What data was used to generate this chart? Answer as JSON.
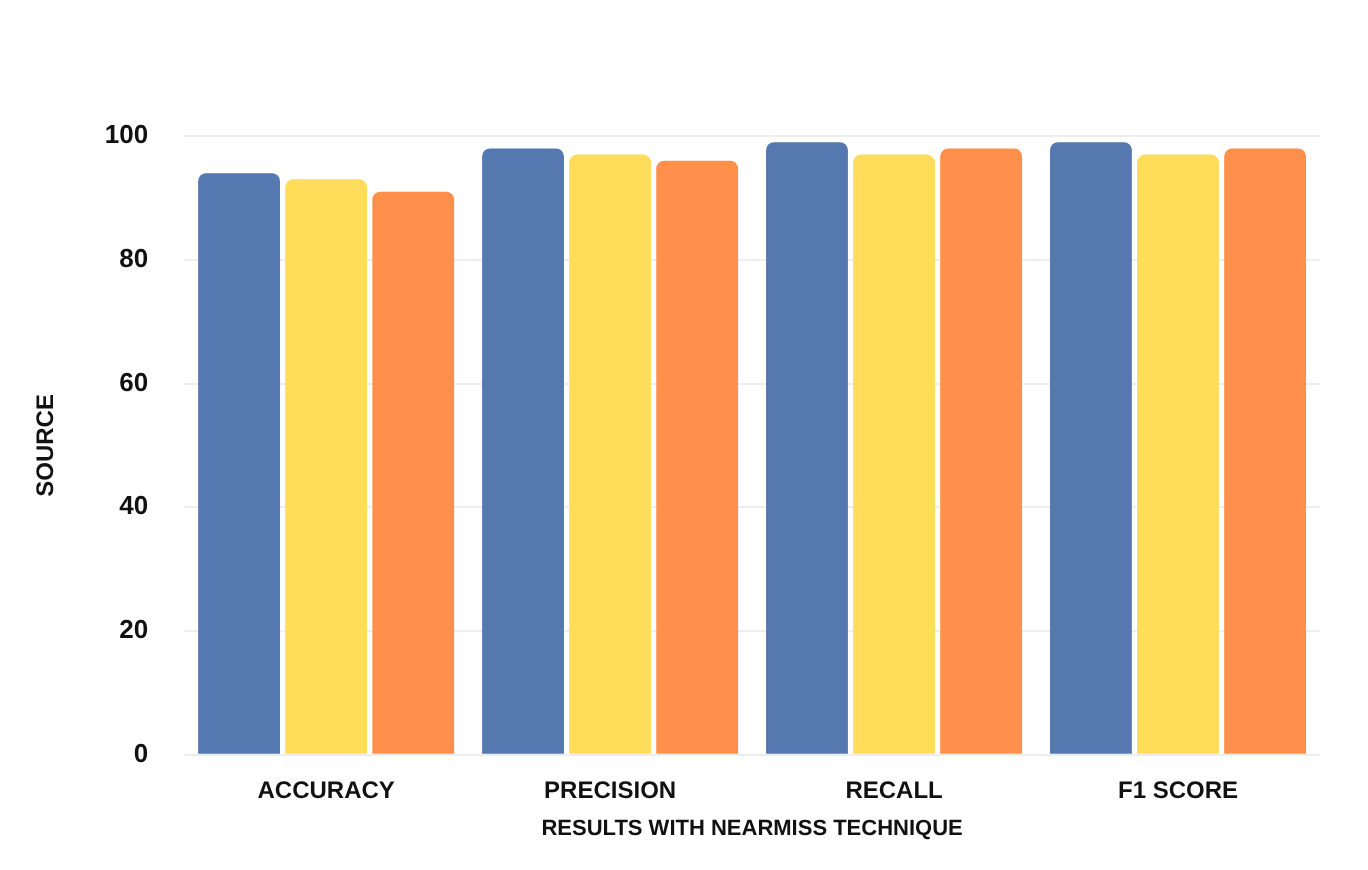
{
  "chart_data": {
    "type": "bar",
    "xlabel": "RESULTS WITH NEARMISS TECHNIQUE",
    "ylabel": "SOURCE",
    "categories": [
      "ACCURACY",
      "PRECISION",
      "RECALL",
      "F1 SCORE"
    ],
    "series": [
      {
        "color": "#5578b0",
        "values": [
          94,
          98,
          99,
          99
        ]
      },
      {
        "color": "#ffdc5a",
        "values": [
          93,
          97,
          97,
          97
        ]
      },
      {
        "color": "#ff904b",
        "values": [
          91,
          96,
          98,
          98
        ]
      }
    ],
    "ylim": [
      0,
      100
    ],
    "yticks": [
      0,
      20,
      40,
      60,
      80,
      100
    ],
    "grid": "y"
  }
}
